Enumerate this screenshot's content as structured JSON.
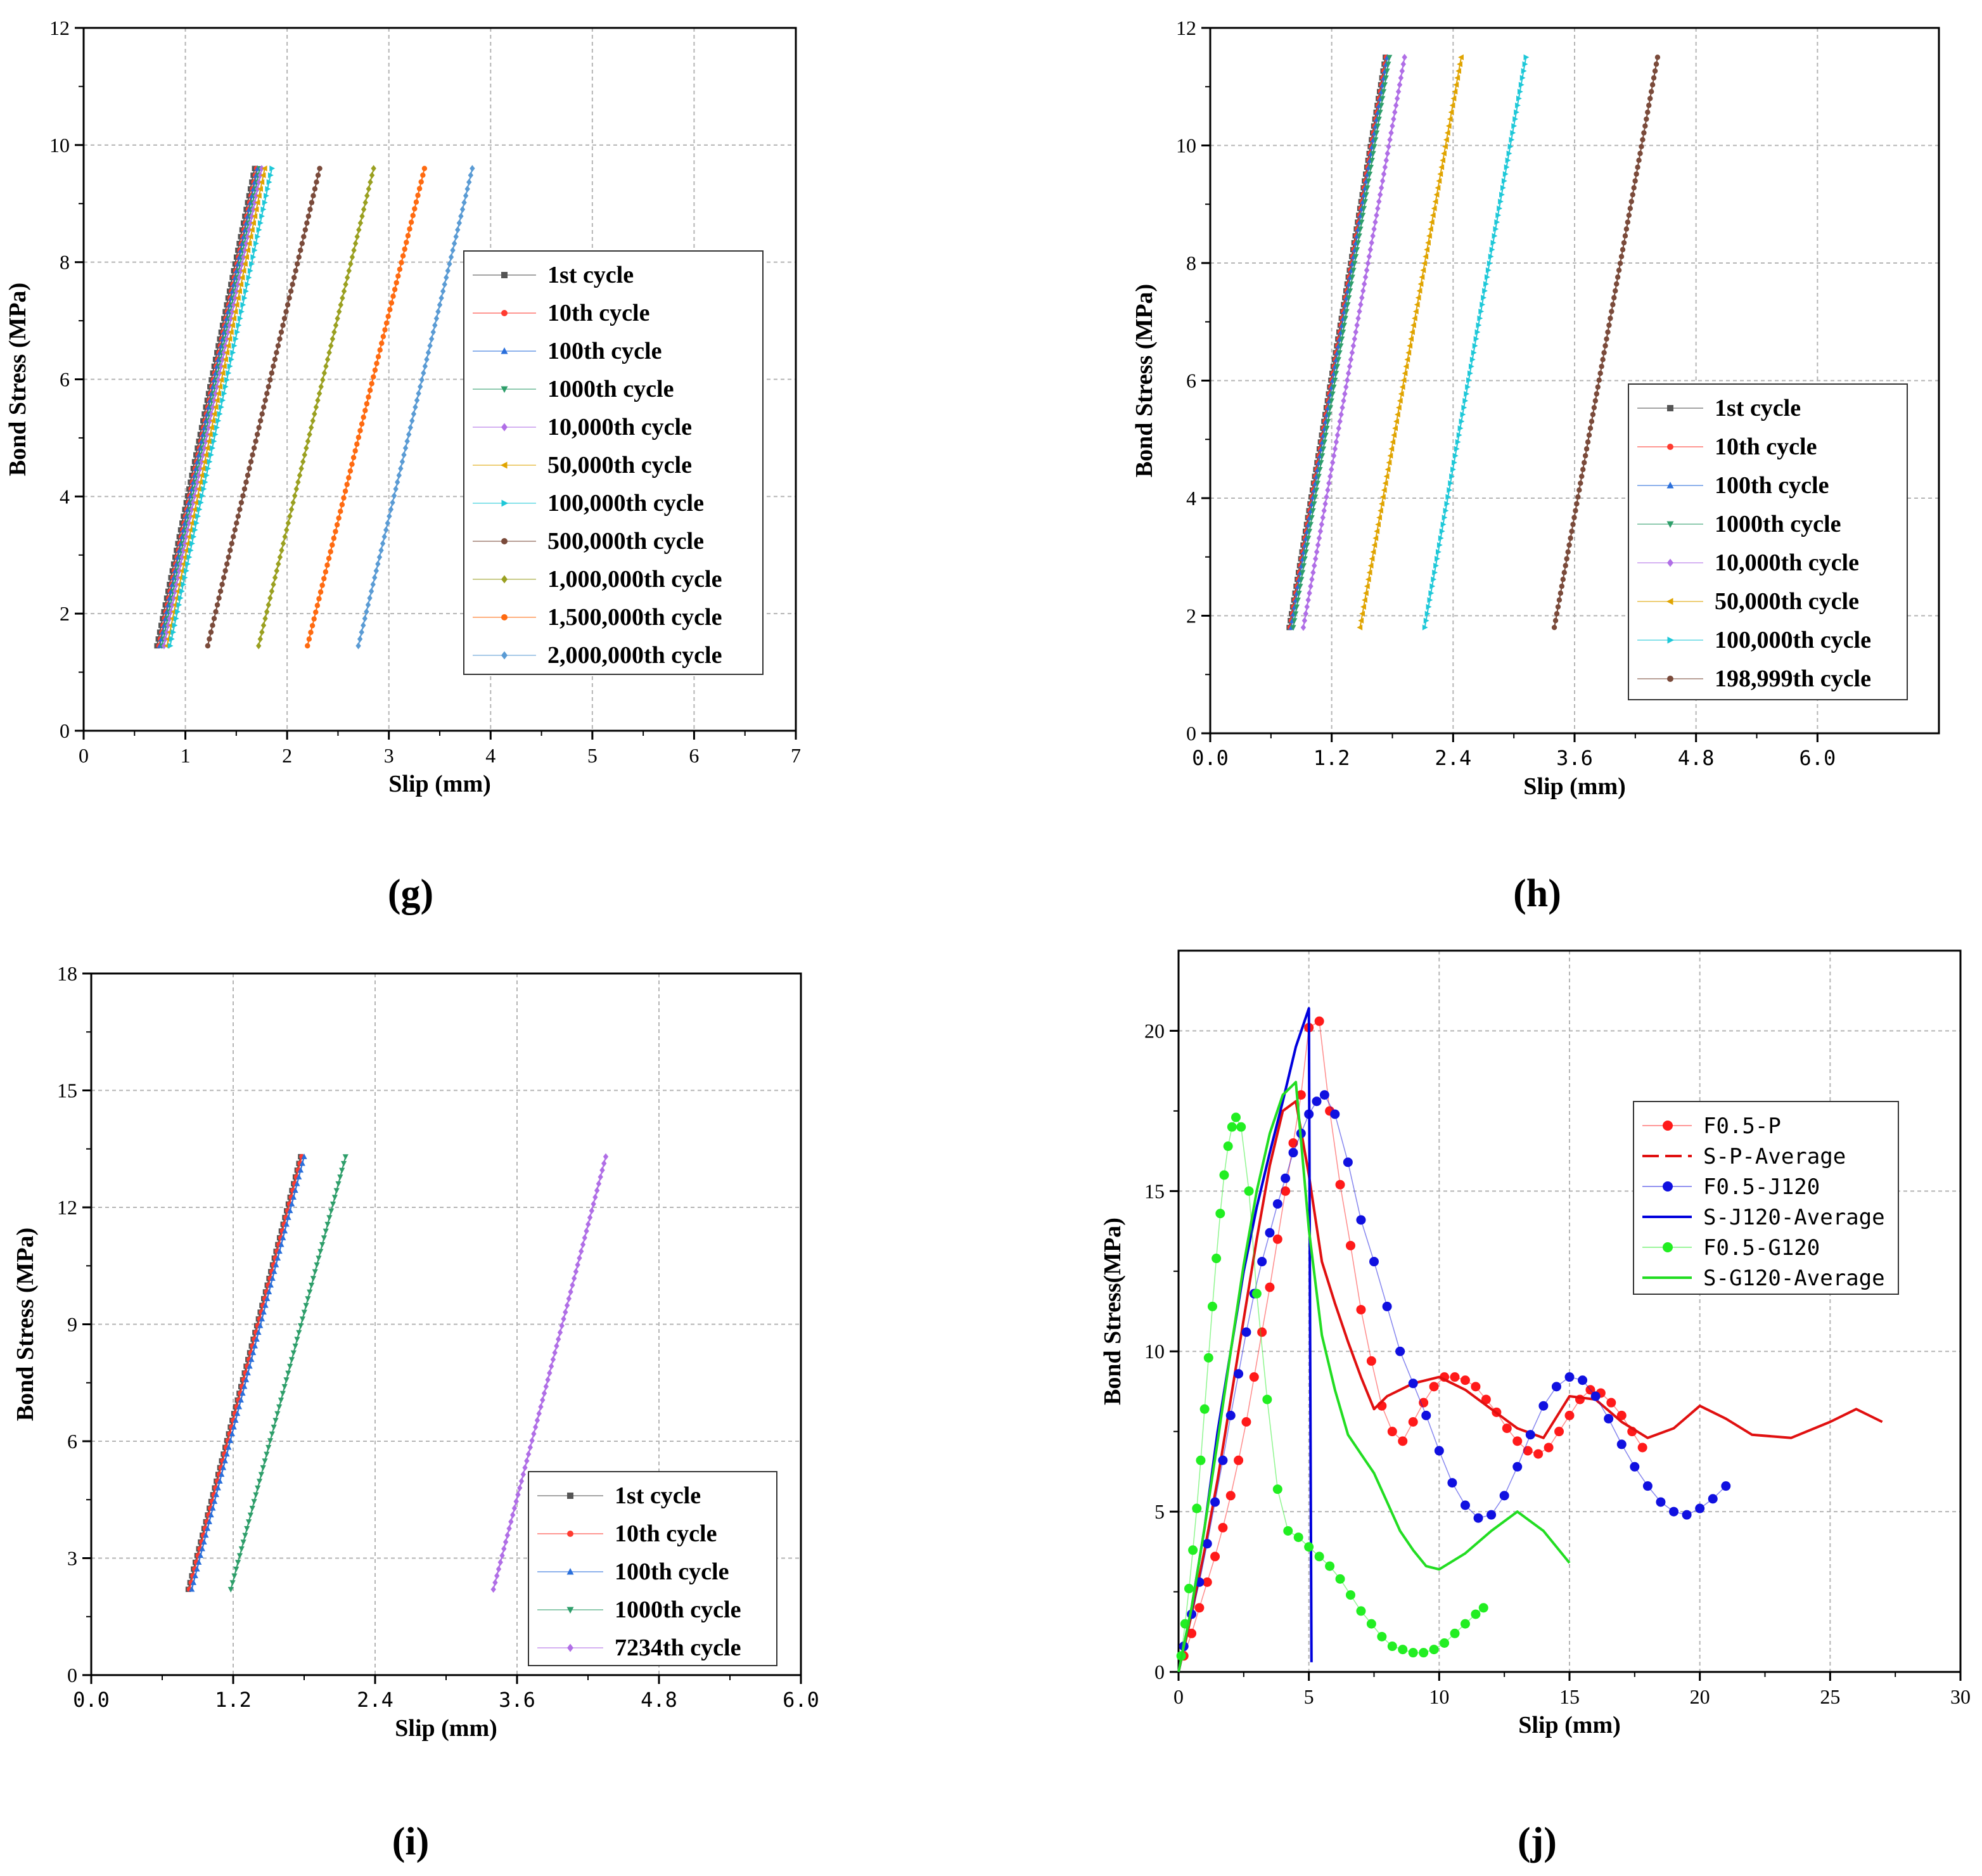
{
  "chart_data": [
    {
      "id": "g",
      "type": "line",
      "panel_label": "(g)",
      "xlabel": "Slip (mm)",
      "ylabel": "Bond Stress (MPa)",
      "xlim": [
        0,
        7
      ],
      "ylim": [
        0,
        12
      ],
      "xticks": [
        "0",
        "1",
        "2",
        "3",
        "4",
        "5",
        "6",
        "7"
      ],
      "xtick_values": [
        0,
        1,
        2,
        3,
        4,
        5,
        6,
        7
      ],
      "yticks": [
        "0",
        "2",
        "4",
        "6",
        "8",
        "10",
        "12"
      ],
      "ytick_values": [
        0,
        2,
        4,
        6,
        8,
        10,
        12
      ],
      "grid": true,
      "legend_position": "center-right",
      "series": [
        {
          "name": "1st cycle",
          "color": "#555555",
          "marker": "square",
          "x": [
            0.72,
            1.68
          ],
          "y": [
            1.45,
            9.6
          ]
        },
        {
          "name": "10th cycle",
          "color": "#ff3b30",
          "marker": "circle",
          "x": [
            0.74,
            1.7
          ],
          "y": [
            1.45,
            9.6
          ]
        },
        {
          "name": "100th cycle",
          "color": "#2a6fdb",
          "marker": "triangle-up",
          "x": [
            0.75,
            1.71
          ],
          "y": [
            1.45,
            9.6
          ]
        },
        {
          "name": "1000th cycle",
          "color": "#2e9e6a",
          "marker": "triangle-down",
          "x": [
            0.77,
            1.73
          ],
          "y": [
            1.45,
            9.6
          ]
        },
        {
          "name": "10,000th cycle",
          "color": "#b06ee6",
          "marker": "diamond",
          "x": [
            0.79,
            1.75
          ],
          "y": [
            1.45,
            9.6
          ]
        },
        {
          "name": "50,000th cycle",
          "color": "#e0a400",
          "marker": "triangle-left",
          "x": [
            0.82,
            1.78
          ],
          "y": [
            1.45,
            9.6
          ]
        },
        {
          "name": "100,000th cycle",
          "color": "#1ec8d8",
          "marker": "triangle-right",
          "x": [
            0.85,
            1.85
          ],
          "y": [
            1.45,
            9.6
          ]
        },
        {
          "name": "500,000th cycle",
          "color": "#7a4a3a",
          "marker": "circle",
          "x": [
            1.22,
            2.32
          ],
          "y": [
            1.45,
            9.6
          ]
        },
        {
          "name": "1,000,000th cycle",
          "color": "#9aa020",
          "marker": "diamond",
          "x": [
            1.72,
            2.85
          ],
          "y": [
            1.45,
            9.6
          ]
        },
        {
          "name": "1,500,000th cycle",
          "color": "#ff6a10",
          "marker": "circle",
          "x": [
            2.2,
            3.35
          ],
          "y": [
            1.45,
            9.6
          ]
        },
        {
          "name": "2,000,000th cycle",
          "color": "#5a9bd4",
          "marker": "diamond",
          "x": [
            2.7,
            3.82
          ],
          "y": [
            1.45,
            9.6
          ]
        }
      ]
    },
    {
      "id": "h",
      "type": "line",
      "panel_label": "(h)",
      "xlabel": "Slip (mm)",
      "ylabel": "Bond Stress (MPa)",
      "xlim": [
        0,
        7.2
      ],
      "ylim": [
        0,
        12
      ],
      "xticks": [
        "0.0",
        "1.2",
        "2.4",
        "3.6",
        "4.8",
        "6.0"
      ],
      "xtick_values": [
        0,
        1.2,
        2.4,
        3.6,
        4.8,
        6.0
      ],
      "yticks": [
        "0",
        "2",
        "4",
        "6",
        "8",
        "10",
        "12"
      ],
      "ytick_values": [
        0,
        2,
        4,
        6,
        8,
        10,
        12
      ],
      "grid": true,
      "legend_position": "lower-right",
      "series": [
        {
          "name": "1st cycle",
          "color": "#555555",
          "marker": "square",
          "x": [
            0.78,
            1.73
          ],
          "y": [
            1.8,
            11.5
          ]
        },
        {
          "name": "10th cycle",
          "color": "#ff3b30",
          "marker": "circle",
          "x": [
            0.79,
            1.74
          ],
          "y": [
            1.8,
            11.5
          ]
        },
        {
          "name": "100th cycle",
          "color": "#2a6fdb",
          "marker": "triangle-up",
          "x": [
            0.8,
            1.75
          ],
          "y": [
            1.8,
            11.5
          ]
        },
        {
          "name": "1000th cycle",
          "color": "#2e9e6a",
          "marker": "triangle-down",
          "x": [
            0.82,
            1.77
          ],
          "y": [
            1.8,
            11.5
          ]
        },
        {
          "name": "10,000th cycle",
          "color": "#b06ee6",
          "marker": "diamond",
          "x": [
            0.92,
            1.92
          ],
          "y": [
            1.8,
            11.5
          ]
        },
        {
          "name": "50,000th cycle",
          "color": "#e0a400",
          "marker": "triangle-left",
          "x": [
            1.48,
            2.48
          ],
          "y": [
            1.8,
            11.5
          ]
        },
        {
          "name": "100,000th cycle",
          "color": "#1ec8d8",
          "marker": "triangle-right",
          "x": [
            2.12,
            3.12
          ],
          "y": [
            1.8,
            11.5
          ]
        },
        {
          "name": "198,999th cycle",
          "color": "#7a4a3a",
          "marker": "circle",
          "x": [
            3.4,
            4.42
          ],
          "y": [
            1.8,
            11.5
          ]
        }
      ]
    },
    {
      "id": "i",
      "type": "line",
      "panel_label": "(i)",
      "xlabel": "Slip (mm)",
      "ylabel": "Bond Stress (MPa)",
      "xlim": [
        0,
        6.0
      ],
      "ylim": [
        0,
        18
      ],
      "xticks": [
        "0.0",
        "1.2",
        "2.4",
        "3.6",
        "4.8",
        "6.0"
      ],
      "xtick_values": [
        0,
        1.2,
        2.4,
        3.6,
        4.8,
        6.0
      ],
      "yticks": [
        "0",
        "3",
        "6",
        "9",
        "12",
        "15",
        "18"
      ],
      "ytick_values": [
        0,
        3,
        6,
        9,
        12,
        15,
        18
      ],
      "grid": true,
      "legend_position": "lower-right",
      "series": [
        {
          "name": "1st cycle",
          "color": "#555555",
          "marker": "square",
          "x": [
            0.82,
            1.77
          ],
          "y": [
            2.2,
            13.3
          ]
        },
        {
          "name": "10th cycle",
          "color": "#ff3b30",
          "marker": "circle",
          "x": [
            0.83,
            1.78
          ],
          "y": [
            2.2,
            13.3
          ]
        },
        {
          "name": "100th cycle",
          "color": "#2a6fdb",
          "marker": "triangle-up",
          "x": [
            0.85,
            1.8
          ],
          "y": [
            2.2,
            13.3
          ]
        },
        {
          "name": "1000th cycle",
          "color": "#2e9e6a",
          "marker": "triangle-down",
          "x": [
            1.18,
            2.15
          ],
          "y": [
            2.2,
            13.3
          ]
        },
        {
          "name": "7234th cycle",
          "color": "#b06ee6",
          "marker": "diamond",
          "x": [
            3.4,
            4.35
          ],
          "y": [
            2.2,
            13.3
          ]
        }
      ]
    },
    {
      "id": "j",
      "type": "line",
      "panel_label": "(j)",
      "xlabel": "Slip (mm)",
      "ylabel": "Bond Stress(MPa)",
      "xlim": [
        0,
        30
      ],
      "ylim": [
        0,
        22.5
      ],
      "xticks": [
        "0",
        "5",
        "10",
        "15",
        "20",
        "25",
        "30"
      ],
      "xtick_values": [
        0,
        5,
        10,
        15,
        20,
        25,
        30
      ],
      "yticks": [
        "0",
        "5",
        "10",
        "15",
        "20"
      ],
      "ytick_values": [
        0,
        5,
        10,
        15,
        20
      ],
      "grid": true,
      "legend_position": "top-right",
      "series": [
        {
          "name": "F0.5-P",
          "color": "#ff1a1a",
          "style": "dots",
          "x": [
            0.2,
            0.5,
            0.8,
            1.1,
            1.4,
            1.7,
            2.0,
            2.3,
            2.6,
            2.9,
            3.2,
            3.5,
            3.8,
            4.1,
            4.4,
            4.7,
            5.0,
            5.4,
            5.8,
            6.2,
            6.6,
            7.0,
            7.4,
            7.8,
            8.2,
            8.6,
            9.0,
            9.4,
            9.8,
            10.2,
            10.6,
            11.0,
            11.4,
            11.8,
            12.2,
            12.6,
            13.0,
            13.4,
            13.8,
            14.2,
            14.6,
            15.0,
            15.4,
            15.8,
            16.2,
            16.6,
            17.0,
            17.4,
            17.8
          ],
          "y": [
            0.5,
            1.2,
            2.0,
            2.8,
            3.6,
            4.5,
            5.5,
            6.6,
            7.8,
            9.2,
            10.6,
            12.0,
            13.5,
            15.0,
            16.5,
            18.0,
            20.1,
            20.3,
            17.5,
            15.2,
            13.3,
            11.3,
            9.7,
            8.3,
            7.5,
            7.2,
            7.8,
            8.4,
            8.9,
            9.2,
            9.2,
            9.1,
            8.9,
            8.5,
            8.1,
            7.6,
            7.2,
            6.9,
            6.8,
            7.0,
            7.5,
            8.0,
            8.5,
            8.8,
            8.7,
            8.4,
            8.0,
            7.5,
            7.0
          ]
        },
        {
          "name": "S-P-Average",
          "color": "#e01010",
          "style": "line",
          "x": [
            0,
            0.5,
            1.0,
            1.5,
            2.0,
            2.5,
            3.0,
            3.5,
            4.0,
            4.5,
            5.0,
            5.5,
            6.0,
            6.5,
            7.0,
            7.5,
            8.0,
            9.0,
            10.0,
            11.0,
            12.0,
            13.0,
            14.0,
            15.0,
            16.0,
            17.0,
            18.0,
            19.0,
            20.0,
            21.0,
            22.0,
            23.5,
            25.0,
            26.0,
            27.0
          ],
          "y": [
            0,
            1.8,
            3.8,
            6.0,
            8.5,
            11.0,
            13.5,
            15.8,
            17.5,
            17.8,
            15.5,
            12.8,
            11.5,
            10.3,
            9.2,
            8.2,
            8.6,
            9.0,
            9.2,
            8.8,
            8.2,
            7.6,
            7.3,
            8.6,
            8.5,
            7.8,
            7.3,
            7.6,
            8.3,
            7.9,
            7.4,
            7.3,
            7.8,
            8.2,
            7.8
          ]
        },
        {
          "name": "F0.5-J120",
          "color": "#1010e0",
          "style": "dots",
          "x": [
            0.2,
            0.5,
            0.8,
            1.1,
            1.4,
            1.7,
            2.0,
            2.3,
            2.6,
            2.9,
            3.2,
            3.5,
            3.8,
            4.1,
            4.4,
            4.7,
            5.0,
            5.3,
            5.6,
            6.0,
            6.5,
            7.0,
            7.5,
            8.0,
            8.5,
            9.0,
            9.5,
            10.0,
            10.5,
            11.0,
            11.5,
            12.0,
            12.5,
            13.0,
            13.5,
            14.0,
            14.5,
            15.0,
            15.5,
            16.0,
            16.5,
            17.0,
            17.5,
            18.0,
            18.5,
            19.0,
            19.5,
            20.0,
            20.5,
            21.0
          ],
          "y": [
            0.8,
            1.8,
            2.8,
            4.0,
            5.3,
            6.6,
            8.0,
            9.3,
            10.6,
            11.8,
            12.8,
            13.7,
            14.6,
            15.4,
            16.2,
            16.8,
            17.4,
            17.8,
            18.0,
            17.4,
            15.9,
            14.1,
            12.8,
            11.4,
            10.0,
            9.0,
            8.0,
            6.9,
            5.9,
            5.2,
            4.8,
            4.9,
            5.5,
            6.4,
            7.4,
            8.3,
            8.9,
            9.2,
            9.1,
            8.6,
            7.9,
            7.1,
            6.4,
            5.8,
            5.3,
            5.0,
            4.9,
            5.1,
            5.4,
            5.8
          ]
        },
        {
          "name": "S-J120-Average",
          "color": "#0000dd",
          "style": "line",
          "x": [
            0,
            0.5,
            1.0,
            1.5,
            2.0,
            2.5,
            3.0,
            3.5,
            4.0,
            4.5,
            5.0,
            5.05,
            5.1
          ],
          "y": [
            0,
            2.0,
            4.5,
            7.5,
            10.0,
            12.5,
            14.5,
            16.2,
            17.8,
            19.5,
            20.7,
            10.0,
            0.3
          ]
        },
        {
          "name": "F0.5-G120",
          "color": "#22ee22",
          "style": "dots",
          "x": [
            0.1,
            0.25,
            0.4,
            0.55,
            0.7,
            0.85,
            1.0,
            1.15,
            1.3,
            1.45,
            1.6,
            1.75,
            1.9,
            2.05,
            2.2,
            2.4,
            2.7,
            3.0,
            3.4,
            3.8,
            4.2,
            4.6,
            5.0,
            5.4,
            5.8,
            6.2,
            6.6,
            7.0,
            7.4,
            7.8,
            8.2,
            8.6,
            9.0,
            9.4,
            9.8,
            10.2,
            10.6,
            11.0,
            11.4,
            11.7
          ],
          "y": [
            0.5,
            1.5,
            2.6,
            3.8,
            5.1,
            6.6,
            8.2,
            9.8,
            11.4,
            12.9,
            14.3,
            15.5,
            16.4,
            17.0,
            17.3,
            17.0,
            15.0,
            11.8,
            8.5,
            5.7,
            4.4,
            4.2,
            3.9,
            3.6,
            3.3,
            2.9,
            2.4,
            1.9,
            1.5,
            1.1,
            0.8,
            0.7,
            0.6,
            0.6,
            0.7,
            0.9,
            1.2,
            1.5,
            1.8,
            2.0
          ]
        },
        {
          "name": "S-G120-Average",
          "color": "#22dd22",
          "style": "line",
          "x": [
            0,
            0.5,
            1.0,
            1.5,
            2.0,
            2.5,
            3.0,
            3.5,
            4.0,
            4.5,
            5.0,
            5.5,
            6.0,
            6.5,
            7.0,
            7.5,
            8.0,
            8.5,
            9.0,
            9.5,
            10.0,
            11.0,
            12.0,
            13.0,
            14.0,
            15.0
          ],
          "y": [
            0,
            2.0,
            4.5,
            7.2,
            10.0,
            12.7,
            15.0,
            16.8,
            18.0,
            18.4,
            13.8,
            10.5,
            8.8,
            7.4,
            6.8,
            6.2,
            5.3,
            4.4,
            3.8,
            3.3,
            3.2,
            3.7,
            4.4,
            5.0,
            4.4,
            3.4
          ]
        }
      ]
    }
  ]
}
